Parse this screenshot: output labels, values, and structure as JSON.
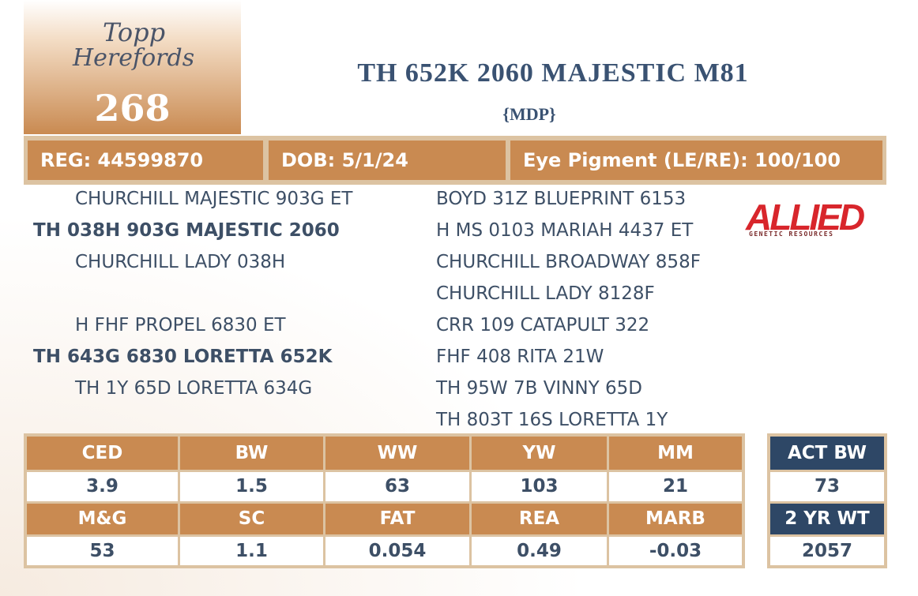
{
  "header": {
    "logo": {
      "line1": "Topp",
      "line2": "Herefords"
    },
    "lot": "268",
    "title": "TH 652K 2060 MAJESTIC M81",
    "subtitle": "{MDP}"
  },
  "info": [
    "REG: 44599870",
    "DOB: 5/1/24",
    "Eye Pigment (LE/RE): 100/100"
  ],
  "pedigree": {
    "left": [
      "CHURCHILL MAJESTIC 903G ET",
      "TH 038H 903G MAJESTIC 2060",
      "CHURCHILL LADY 038H",
      "H FHF PROPEL 6830 ET",
      "TH 643G 6830 LORETTA 652K",
      "TH 1Y 65D LORETTA 634G"
    ],
    "right": [
      "BOYD 31Z BLUEPRINT 6153",
      "H MS 0103 MARIAH 4437 ET",
      "CHURCHILL BROADWAY 858F",
      "CHURCHILL LADY 8128F",
      "CRR 109 CATAPULT 322",
      "FHF 408 RITA 21W",
      "TH 95W 7B VINNY 65D",
      "TH 803T 16S LORETTA 1Y"
    ]
  },
  "sponsor": {
    "name": "ALLIED",
    "tagline": "GENETIC RESOURCES"
  },
  "epd": {
    "rows": [
      {
        "headers": [
          "CED",
          "BW",
          "WW",
          "YW",
          "MM"
        ],
        "values": [
          "3.9",
          "1.5",
          "63",
          "103",
          "21"
        ]
      },
      {
        "headers": [
          "M&G",
          "SC",
          "FAT",
          "REA",
          "MARB"
        ],
        "values": [
          "53",
          "1.1",
          "0.054",
          "0.49",
          "-0.03"
        ]
      }
    ]
  },
  "actuals": {
    "rows": [
      {
        "header": "ACT BW",
        "value": "73"
      },
      {
        "header": "2 YR WT",
        "value": "2057"
      }
    ]
  }
}
